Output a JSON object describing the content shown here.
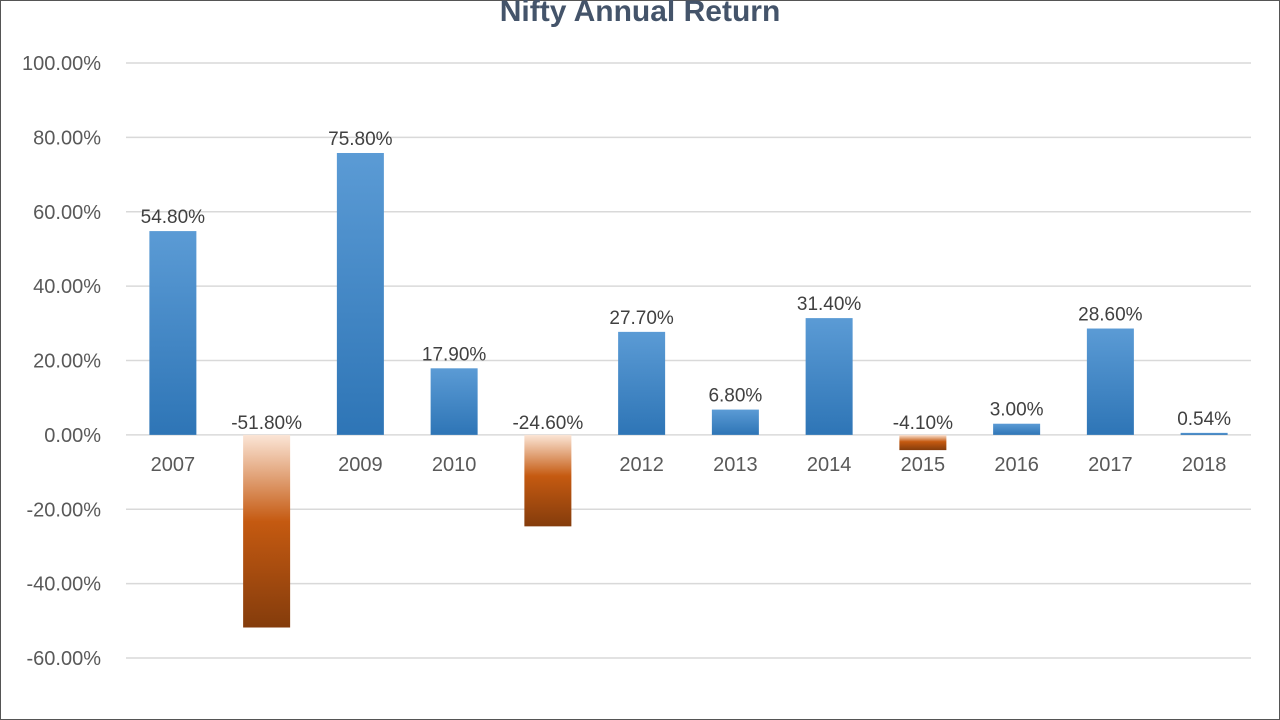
{
  "chart_data": {
    "type": "bar",
    "title": "Nifty Annual Return",
    "categories": [
      "2007",
      "",
      "2009",
      "2010",
      "",
      "2012",
      "2013",
      "2014",
      "2015",
      "2016",
      "2017",
      "2018"
    ],
    "values": [
      54.8,
      -51.8,
      75.8,
      17.9,
      -24.6,
      27.7,
      6.8,
      31.4,
      -4.1,
      3.0,
      28.6,
      0.54
    ],
    "data_labels": [
      "54.80%",
      "-51.80%",
      "75.80%",
      "17.90%",
      "-24.60%",
      "27.70%",
      "6.80%",
      "31.40%",
      "-4.10%",
      "3.00%",
      "28.60%",
      "0.54%"
    ],
    "y_ticks": [
      100,
      80,
      60,
      40,
      20,
      0,
      -20,
      -40,
      -60
    ],
    "y_tick_labels": [
      "100.00%",
      "80.00%",
      "60.00%",
      "40.00%",
      "20.00%",
      "0.00%",
      "-20.00%",
      "-40.00%",
      "-60.00%"
    ],
    "ylim": [
      -60,
      100
    ],
    "grid": true,
    "legend": "none",
    "colors": {
      "positive_top": "#5b9bd5",
      "positive_bottom": "#2e75b6",
      "negative_top": "#fbe5d6",
      "negative_mid": "#c55a11",
      "negative_bottom": "#843c0c",
      "gridline": "#d9d9d9",
      "title": "#44546a"
    }
  }
}
